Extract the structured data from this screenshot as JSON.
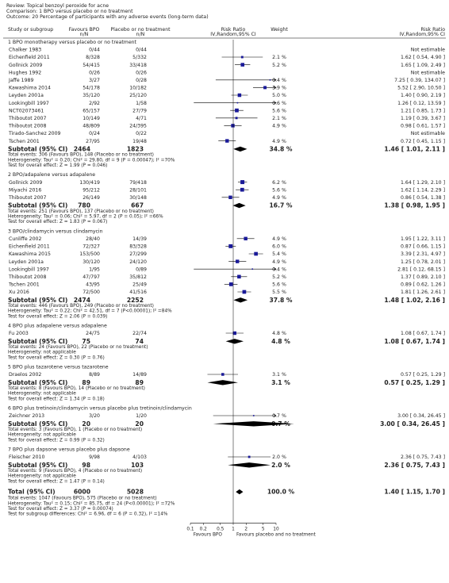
{
  "header": {
    "review": "Review:  Topical benzoyl peroxide for acne",
    "comparison": "Comparison:  1 BPO versus placebo or no treatment",
    "outcome": "Outcome:  20 Percentage of participants with any adverse events (long-term data)"
  },
  "columns": {
    "study": "Study or subgroup",
    "exp": "Favours BPO",
    "ctl": "Placebo or no treatment",
    "n": "n/N",
    "rr1": "Risk Ratio",
    "rr2": "IV,Random,95% CI",
    "weight": "Weight"
  },
  "chart_data": {
    "type": "forest",
    "x_scale": "log",
    "x_ticks": [
      0.1,
      0.2,
      0.5,
      1,
      2,
      5,
      10
    ],
    "xlim": [
      0.1,
      10
    ],
    "left_label": "Favours BPO",
    "right_label": "Favours placebo and no treatment",
    "subgroups": [
      {
        "title": "1 BPO monotherapy versus placebo or no treatment",
        "studies": [
          {
            "name": "Chalker 1983",
            "exp": "0/44",
            "ctl": "0/44",
            "weight": "",
            "est": null,
            "text": "Not estimable"
          },
          {
            "name": "Eichenfield 2011",
            "exp": "8/328",
            "ctl": "5/332",
            "weight": "2.1 %",
            "est": [
              1.62,
              0.54,
              4.9
            ],
            "text": "1.62 [ 0.54, 4.90 ]"
          },
          {
            "name": "Gollnick 2009",
            "exp": "54/415",
            "ctl": "33/418",
            "weight": "5.2 %",
            "est": [
              1.65,
              1.09,
              2.49
            ],
            "text": "1.65 [ 1.09, 2.49 ]"
          },
          {
            "name": "Hughes 1992",
            "exp": "0/26",
            "ctl": "0/26",
            "weight": "",
            "est": null,
            "text": "Not estimable"
          },
          {
            "name": "Jaffe 1989",
            "exp": "3/27",
            "ctl": "0/28",
            "weight": "0.4 %",
            "est": [
              7.25,
              0.39,
              134.07
            ],
            "text": "7.25 [ 0.39, 134.07 ]"
          },
          {
            "name": "Kawashima 2014",
            "exp": "54/178",
            "ctl": "10/182",
            "weight": "3.9 %",
            "est": [
              5.52,
              2.9,
              10.5
            ],
            "text": "5.52 [ 2.90, 10.50 ]"
          },
          {
            "name": "Leyden 2001a",
            "exp": "35/120",
            "ctl": "25/120",
            "weight": "5.0 %",
            "est": [
              1.4,
              0.9,
              2.19
            ],
            "text": "1.40 [ 0.90, 2.19 ]"
          },
          {
            "name": "Lookingbill 1997",
            "exp": "2/92",
            "ctl": "1/58",
            "weight": "0.6 %",
            "est": [
              1.26,
              0.12,
              13.59
            ],
            "text": "1.26 [ 0.12, 13.59 ]"
          },
          {
            "name": "NCT02073461",
            "exp": "65/157",
            "ctl": "27/79",
            "weight": "5.6 %",
            "est": [
              1.21,
              0.85,
              1.73
            ],
            "text": "1.21 [ 0.85, 1.73 ]"
          },
          {
            "name": "Thiboutot 2007",
            "exp": "10/149",
            "ctl": "4/71",
            "weight": "2.1 %",
            "est": [
              1.19,
              0.39,
              3.67
            ],
            "text": "1.19 [ 0.39, 3.67 ]"
          },
          {
            "name": "Thiboutot 2008",
            "exp": "48/809",
            "ctl": "24/395",
            "weight": "4.9 %",
            "est": [
              0.98,
              0.61,
              1.57
            ],
            "text": "0.98 [ 0.61, 1.57 ]"
          },
          {
            "name": "Tirado-Sanchez 2009",
            "exp": "0/24",
            "ctl": "0/22",
            "weight": "",
            "est": null,
            "text": "Not estimable"
          },
          {
            "name": "Tschen 2001",
            "exp": "27/95",
            "ctl": "19/48",
            "weight": "4.9 %",
            "est": [
              0.72,
              0.45,
              1.15
            ],
            "text": "0.72 [ 0.45, 1.15 ]"
          }
        ],
        "subtotal": {
          "label": "Subtotal (95% CI)",
          "exp": "2464",
          "ctl": "1823",
          "weight": "34.8 %",
          "est": [
            1.46,
            1.01,
            2.11
          ],
          "text": "1.46 [ 1.01, 2.11 ]"
        },
        "notes": [
          "Total events: 306 (Favours BPO), 148 (Placebo or no treatment)",
          "Heterogeneity: Tau² = 0.20; Chi² = 29.80, df = 9 (P = 0.00047); I² =70%",
          "Test for overall effect: Z = 1.99 (P = 0.046)"
        ]
      },
      {
        "title": "2 BPO/adapalene versus adapalene",
        "studies": [
          {
            "name": "Gollnick 2009",
            "exp": "130/419",
            "ctl": "79/418",
            "weight": "6.2 %",
            "est": [
              1.64,
              1.29,
              2.1
            ],
            "text": "1.64 [ 1.29, 2.10 ]"
          },
          {
            "name": "Miyachi 2016",
            "exp": "95/212",
            "ctl": "28/101",
            "weight": "5.6 %",
            "est": [
              1.62,
              1.14,
              2.29
            ],
            "text": "1.62 [ 1.14, 2.29 ]"
          },
          {
            "name": "Thiboutot 2007",
            "exp": "26/149",
            "ctl": "30/148",
            "weight": "4.9 %",
            "est": [
              0.86,
              0.54,
              1.38
            ],
            "text": "0.86 [ 0.54, 1.38 ]"
          }
        ],
        "subtotal": {
          "label": "Subtotal (95% CI)",
          "exp": "780",
          "ctl": "667",
          "weight": "16.7 %",
          "est": [
            1.38,
            0.98,
            1.95
          ],
          "text": "1.38 [ 0.98, 1.95 ]"
        },
        "notes": [
          "Total events: 251 (Favours BPO), 137 (Placebo or no treatment)",
          "Heterogeneity: Tau² = 0.06; Chi² = 5.97, df = 2 (P = 0.05); I² =66%",
          "Test for overall effect: Z = 1.83 (P = 0.067)"
        ]
      },
      {
        "title": "3 BPO/clindamycin versus clindamycin",
        "studies": [
          {
            "name": "Cunliffe 2002",
            "exp": "28/40",
            "ctl": "14/39",
            "weight": "4.9 %",
            "est": [
              1.95,
              1.22,
              3.11
            ],
            "text": "1.95 [ 1.22, 3.11 ]"
          },
          {
            "name": "Eichenfield 2011",
            "exp": "72/327",
            "ctl": "83/328",
            "weight": "6.0 %",
            "est": [
              0.87,
              0.66,
              1.15
            ],
            "text": "0.87 [ 0.66, 1.15 ]"
          },
          {
            "name": "Kawashima 2015",
            "exp": "153/500",
            "ctl": "27/299",
            "weight": "5.4 %",
            "est": [
              3.39,
              2.31,
              4.97
            ],
            "text": "3.39 [ 2.31, 4.97 ]"
          },
          {
            "name": "Leyden 2001a",
            "exp": "30/120",
            "ctl": "24/120",
            "weight": "4.9 %",
            "est": [
              1.25,
              0.78,
              2.01
            ],
            "text": "1.25 [ 0.78, 2.01 ]"
          },
          {
            "name": "Lookingbill 1997",
            "exp": "1/95",
            "ctl": "0/89",
            "weight": "0.4 %",
            "est": [
              2.81,
              0.12,
              68.15
            ],
            "text": "2.81 [ 0.12, 68.15 ]"
          },
          {
            "name": "Thiboutot 2008",
            "exp": "47/797",
            "ctl": "35/812",
            "weight": "5.2 %",
            "est": [
              1.37,
              0.89,
              2.1
            ],
            "text": "1.37 [ 0.89, 2.10 ]"
          },
          {
            "name": "Tschen 2001",
            "exp": "43/95",
            "ctl": "25/49",
            "weight": "5.6 %",
            "est": [
              0.89,
              0.62,
              1.26
            ],
            "text": "0.89 [ 0.62, 1.26 ]"
          },
          {
            "name": "Xu 2016",
            "exp": "72/500",
            "ctl": "41/516",
            "weight": "5.5 %",
            "est": [
              1.81,
              1.26,
              2.61
            ],
            "text": "1.81 [ 1.26, 2.61 ]"
          }
        ],
        "subtotal": {
          "label": "Subtotal (95% CI)",
          "exp": "2474",
          "ctl": "2252",
          "weight": "37.8 %",
          "est": [
            1.48,
            1.02,
            2.16
          ],
          "text": "1.48 [ 1.02, 2.16 ]"
        },
        "notes": [
          "Total events: 446 (Favours BPO), 249 (Placebo or no treatment)",
          "Heterogeneity: Tau² = 0.22; Chi² = 42.51, df = 7 (P<0.00001); I² =84%",
          "Test for overall effect: Z = 2.06 (P = 0.039)"
        ]
      },
      {
        "title": "4 BPO plus adapalene versus adapalene",
        "studies": [
          {
            "name": "Fu 2003",
            "exp": "24/75",
            "ctl": "22/74",
            "weight": "4.8 %",
            "est": [
              1.08,
              0.67,
              1.74
            ],
            "text": "1.08 [ 0.67, 1.74 ]"
          }
        ],
        "subtotal": {
          "label": "Subtotal (95% CI)",
          "exp": "75",
          "ctl": "74",
          "weight": "4.8 %",
          "est": [
            1.08,
            0.67,
            1.74
          ],
          "text": "1.08 [ 0.67, 1.74 ]"
        },
        "notes": [
          "Total events: 24 (Favours BPO), 22 (Placebo or no treatment)",
          "Heterogeneity: not applicable",
          "Test for overall effect: Z = 0.30 (P = 0.76)"
        ]
      },
      {
        "title": "5 BPO plus tazarotene versus tazarotene",
        "studies": [
          {
            "name": "Draelos 2002",
            "exp": "8/89",
            "ctl": "14/89",
            "weight": "3.1 %",
            "est": [
              0.57,
              0.25,
              1.29
            ],
            "text": "0.57 [ 0.25, 1.29 ]"
          }
        ],
        "subtotal": {
          "label": "Subtotal (95% CI)",
          "exp": "89",
          "ctl": "89",
          "weight": "3.1 %",
          "est": [
            0.57,
            0.25,
            1.29
          ],
          "text": "0.57 [ 0.25, 1.29 ]"
        },
        "notes": [
          "Total events: 8 (Favours BPO), 14 (Placebo or no treatment)",
          "Heterogeneity: not applicable",
          "Test for overall effect: Z = 1.34 (P = 0.18)"
        ]
      },
      {
        "title": "6 BPO plus tretinoin/clindamycin versus placebo plus tretinoin/clindamycin",
        "studies": [
          {
            "name": "Zeichner 2013",
            "exp": "3/20",
            "ctl": "1/20",
            "weight": "0.7 %",
            "est": [
              3.0,
              0.34,
              26.45
            ],
            "text": "3.00 [ 0.34, 26.45 ]"
          }
        ],
        "subtotal": {
          "label": "Subtotal (95% CI)",
          "exp": "20",
          "ctl": "20",
          "weight": "0.7 %",
          "est": [
            3.0,
            0.34,
            26.45
          ],
          "text": "3.00 [ 0.34, 26.45 ]"
        },
        "notes": [
          "Total events: 3 (Favours BPO), 1 (Placebo or no treatment)",
          "Heterogeneity: not applicable",
          "Test for overall effect: Z = 0.99 (P = 0.32)"
        ]
      },
      {
        "title": "7 BPO plus dapsone versus placebo plus dapsone",
        "studies": [
          {
            "name": "Fleischer 2010",
            "exp": "9/98",
            "ctl": "4/103",
            "weight": "2.0 %",
            "est": [
              2.36,
              0.75,
              7.43
            ],
            "text": "2.36 [ 0.75, 7.43 ]"
          }
        ],
        "subtotal": {
          "label": "Subtotal (95% CI)",
          "exp": "98",
          "ctl": "103",
          "weight": "2.0 %",
          "est": [
            2.36,
            0.75,
            7.43
          ],
          "text": "2.36 [ 0.75, 7.43 ]"
        },
        "notes": [
          "Total events: 9 (Favours BPO), 4 (Placebo or no treatment)",
          "Heterogeneity: not applicable",
          "Test for overall effect: Z = 1.47 (P = 0.14)"
        ]
      }
    ],
    "total": {
      "label": "Total (95% CI)",
      "exp": "6000",
      "ctl": "5028",
      "weight": "100.0 %",
      "est": [
        1.4,
        1.15,
        1.7
      ],
      "text": "1.40 [ 1.15, 1.70 ]"
    },
    "total_notes": [
      "Total events: 1047 (Favours BPO), 575 (Placebo or no treatment)",
      "Heterogeneity: Tau² = 0.15; Chi² = 85.75, df = 24 (P<0.00001); I² =72%",
      "Test for overall effect: Z = 3.37 (P = 0.00074)",
      "Test for subgroup differences: Chi² = 6.96, df = 6 (P = 0.32), I² =14%"
    ]
  }
}
